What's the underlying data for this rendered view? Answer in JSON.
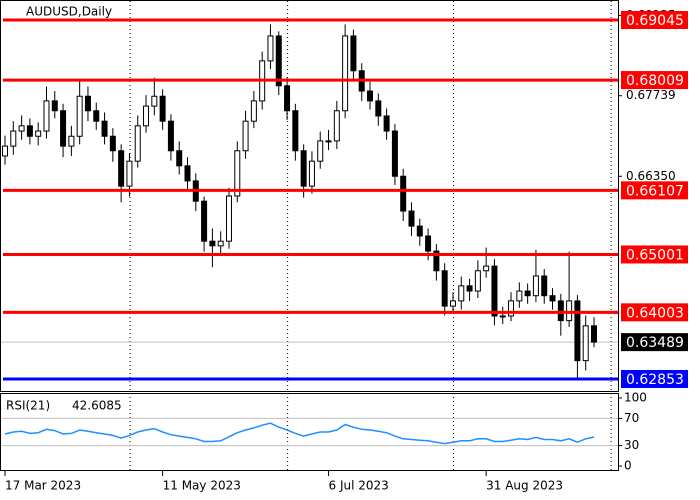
{
  "chart_data": {
    "type": "candlestick",
    "title": "AUDUSD,Daily",
    "categories": [
      "17 Mar 2023",
      null,
      null,
      null,
      null,
      null,
      null,
      null,
      null,
      null,
      null,
      null,
      null,
      null,
      null,
      null,
      null,
      null,
      null,
      "11 May 2023",
      null,
      null,
      null,
      null,
      null,
      null,
      null,
      null,
      null,
      null,
      null,
      null,
      null,
      null,
      null,
      null,
      null,
      null,
      null,
      "6 Jul 2023",
      null,
      null,
      null,
      null,
      null,
      null,
      null,
      null,
      null,
      null,
      null,
      null,
      null,
      null,
      null,
      null,
      null,
      null,
      "31 Aug 2023",
      null,
      null,
      null,
      null,
      null,
      null,
      null,
      null,
      null,
      null,
      null,
      null,
      null
    ],
    "ohlc": [
      [
        0.667,
        0.6705,
        0.6655,
        0.6687
      ],
      [
        0.6687,
        0.673,
        0.6672,
        0.6713
      ],
      [
        0.6713,
        0.674,
        0.6698,
        0.6722
      ],
      [
        0.6722,
        0.6735,
        0.669,
        0.6704
      ],
      [
        0.6704,
        0.6728,
        0.6688,
        0.6713
      ],
      [
        0.6713,
        0.679,
        0.67,
        0.6765
      ],
      [
        0.6765,
        0.6782,
        0.6735,
        0.6748
      ],
      [
        0.6748,
        0.676,
        0.6668,
        0.6687
      ],
      [
        0.6687,
        0.6722,
        0.667,
        0.6704
      ],
      [
        0.6704,
        0.68,
        0.669,
        0.6773
      ],
      [
        0.6773,
        0.679,
        0.673,
        0.6748
      ],
      [
        0.6748,
        0.6762,
        0.6715,
        0.673
      ],
      [
        0.673,
        0.6745,
        0.669,
        0.6704
      ],
      [
        0.6704,
        0.6718,
        0.666,
        0.6679
      ],
      [
        0.6679,
        0.669,
        0.659,
        0.6618
      ],
      [
        0.6618,
        0.6675,
        0.66,
        0.6661
      ],
      [
        0.6661,
        0.674,
        0.665,
        0.6722
      ],
      [
        0.6722,
        0.6775,
        0.671,
        0.6756
      ],
      [
        0.6756,
        0.6805,
        0.674,
        0.6773
      ],
      [
        0.6773,
        0.6785,
        0.6715,
        0.673
      ],
      [
        0.673,
        0.6742,
        0.6662,
        0.6679
      ],
      [
        0.6679,
        0.6695,
        0.6638,
        0.6653
      ],
      [
        0.6653,
        0.6668,
        0.661,
        0.6627
      ],
      [
        0.6627,
        0.664,
        0.6575,
        0.6592
      ],
      [
        0.6592,
        0.66,
        0.6505,
        0.6523
      ],
      [
        0.6523,
        0.6545,
        0.6478,
        0.6515
      ],
      [
        0.6515,
        0.654,
        0.6498,
        0.6523
      ],
      [
        0.6523,
        0.6615,
        0.651,
        0.6601
      ],
      [
        0.6601,
        0.6695,
        0.659,
        0.6679
      ],
      [
        0.6679,
        0.6748,
        0.6665,
        0.673
      ],
      [
        0.673,
        0.6782,
        0.6718,
        0.6765
      ],
      [
        0.6765,
        0.685,
        0.675,
        0.6834
      ],
      [
        0.6834,
        0.6897,
        0.682,
        0.6877
      ],
      [
        0.6877,
        0.6885,
        0.6775,
        0.6791
      ],
      [
        0.6791,
        0.6805,
        0.6732,
        0.6748
      ],
      [
        0.6748,
        0.676,
        0.6662,
        0.6679
      ],
      [
        0.6679,
        0.669,
        0.6598,
        0.6618
      ],
      [
        0.6618,
        0.6678,
        0.6605,
        0.6661
      ],
      [
        0.6661,
        0.6712,
        0.6648,
        0.6696
      ],
      [
        0.6696,
        0.6715,
        0.668,
        0.6696
      ],
      [
        0.6696,
        0.6765,
        0.6682,
        0.6748
      ],
      [
        0.6748,
        0.6897,
        0.6735,
        0.6877
      ],
      [
        0.6877,
        0.6888,
        0.68,
        0.6817
      ],
      [
        0.6817,
        0.683,
        0.6765,
        0.6782
      ],
      [
        0.6782,
        0.6798,
        0.675,
        0.6765
      ],
      [
        0.6765,
        0.6778,
        0.6722,
        0.6739
      ],
      [
        0.6739,
        0.6752,
        0.6698,
        0.6713
      ],
      [
        0.6713,
        0.6725,
        0.662,
        0.6635
      ],
      [
        0.6635,
        0.6648,
        0.6558,
        0.6575
      ],
      [
        0.6575,
        0.659,
        0.6532,
        0.6549
      ],
      [
        0.6549,
        0.6562,
        0.6515,
        0.6532
      ],
      [
        0.6532,
        0.6545,
        0.649,
        0.6506
      ],
      [
        0.6506,
        0.6518,
        0.6455,
        0.6472
      ],
      [
        0.6472,
        0.6485,
        0.6395,
        0.6411
      ],
      [
        0.6411,
        0.6435,
        0.6398,
        0.642
      ],
      [
        0.642,
        0.6462,
        0.6405,
        0.6446
      ],
      [
        0.6446,
        0.6458,
        0.642,
        0.6437
      ],
      [
        0.6437,
        0.649,
        0.6425,
        0.6472
      ],
      [
        0.6472,
        0.6512,
        0.646,
        0.648
      ],
      [
        0.648,
        0.6492,
        0.6378,
        0.6394
      ],
      [
        0.6394,
        0.641,
        0.638,
        0.6394
      ],
      [
        0.6394,
        0.6435,
        0.6385,
        0.642
      ],
      [
        0.642,
        0.6452,
        0.6408,
        0.6437
      ],
      [
        0.6437,
        0.645,
        0.6415,
        0.6429
      ],
      [
        0.6429,
        0.6508,
        0.6418,
        0.6463
      ],
      [
        0.6463,
        0.6475,
        0.6415,
        0.6429
      ],
      [
        0.6429,
        0.6442,
        0.6405,
        0.642
      ],
      [
        0.642,
        0.6432,
        0.636,
        0.6386
      ],
      [
        0.6386,
        0.6505,
        0.6375,
        0.642
      ],
      [
        0.642,
        0.643,
        0.6285,
        0.6317
      ],
      [
        0.6317,
        0.6395,
        0.63,
        0.6377
      ],
      [
        0.6377,
        0.6392,
        0.634,
        0.63489
      ]
    ],
    "bull_color": "#ffffff",
    "bear_color": "#000000",
    "ylim": [
      0.62646,
      0.69373
    ],
    "yticks": [
      0.69125,
      0.67739,
      {
        "value": 0.6635,
        "label": "0.66350"
      }
    ],
    "levels": [
      {
        "value": 0.69045,
        "color": "#ff0000"
      },
      {
        "value": 0.68009,
        "color": "#ff0000"
      },
      {
        "value": 0.66107,
        "color": "#ff0000"
      },
      {
        "value": 0.65001,
        "color": "#ff0000"
      },
      {
        "value": 0.64003,
        "color": "#ff0000"
      },
      {
        "value": 0.62853,
        "color": "#0000ff"
      }
    ],
    "price_line_color": "#c0c0c0",
    "indicator": {
      "name": "RSI(21)",
      "color": "#1e90ff",
      "values": [
        47,
        50,
        51,
        48,
        49,
        54,
        52,
        47,
        48,
        53,
        51,
        49,
        47,
        45,
        41,
        45,
        50,
        53,
        55,
        50,
        46,
        44,
        42,
        40,
        36,
        36,
        37,
        43,
        49,
        53,
        56,
        60,
        63,
        57,
        53,
        48,
        44,
        47,
        50,
        50,
        53,
        61,
        57,
        54,
        53,
        51,
        49,
        44,
        40,
        39,
        38,
        37,
        35,
        33,
        35,
        37,
        37,
        40,
        40,
        36,
        36,
        38,
        40,
        39,
        42,
        39,
        39,
        37,
        40,
        35,
        40,
        42.6085
      ],
      "ylim": [
        0,
        100
      ],
      "yticks": [
        0,
        30,
        70,
        100
      ],
      "levels": [
        30,
        70
      ]
    }
  }
}
